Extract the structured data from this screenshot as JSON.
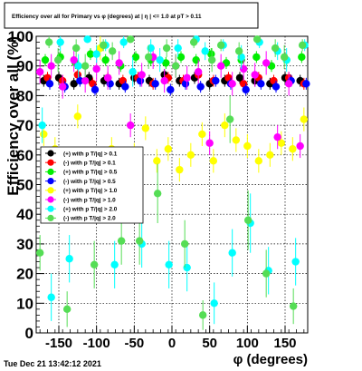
{
  "chart_data": {
    "type": "scatter",
    "title": "Efficiency over all for Primary vs φ (degrees) at | η | <= 1.0 at pT > 0.11",
    "xlabel": "φ (degrees)",
    "ylabel": "Efficiency over all (%)",
    "xlim": [
      -180,
      180
    ],
    "ylim": [
      0,
      100
    ],
    "xticks": [
      -150,
      -100,
      -50,
      0,
      50,
      100,
      150
    ],
    "yticks": [
      0,
      10,
      20,
      30,
      40,
      50,
      60,
      70,
      80,
      90,
      100
    ],
    "grid": true,
    "legend_position": "left-middle",
    "series": [
      {
        "name": "(+) with p T/|q| > 0.1",
        "color": "#000000",
        "x": [
          -170,
          -150,
          -130,
          -110,
          -90,
          -70,
          -50,
          -30,
          -10,
          10,
          30,
          50,
          70,
          90,
          110,
          130,
          150,
          170
        ],
        "y": [
          85,
          86,
          84,
          86,
          85,
          84,
          86,
          85,
          87,
          85,
          86,
          84,
          85,
          86,
          85,
          84,
          86,
          85
        ],
        "err": [
          2,
          2,
          2,
          2,
          2,
          2,
          2,
          2,
          2,
          2,
          2,
          2,
          2,
          2,
          2,
          2,
          2,
          2
        ]
      },
      {
        "name": "(-) with p T/|q| > 0.1",
        "color": "#ff0000",
        "x": [
          -165,
          -145,
          -125,
          -105,
          -85,
          -65,
          -45,
          -25,
          -5,
          15,
          35,
          55,
          75,
          95,
          115,
          135,
          155,
          175
        ],
        "y": [
          86,
          85,
          87,
          84,
          86,
          85,
          86,
          84,
          86,
          85,
          87,
          85,
          86,
          84,
          86,
          85,
          86,
          84
        ],
        "err": [
          2,
          2,
          2,
          2,
          2,
          2,
          2,
          2,
          2,
          2,
          2,
          2,
          2,
          2,
          2,
          2,
          2,
          2
        ]
      },
      {
        "name": "(+) with p T/|q| > 0.5",
        "color": "#00ee00",
        "x": [
          -168,
          -148,
          -128,
          -108,
          -88,
          -68,
          -48,
          -28,
          -8,
          12,
          32,
          52,
          72,
          92,
          112,
          132,
          152,
          172
        ],
        "y": [
          92,
          93,
          91,
          94,
          92,
          90,
          93,
          92,
          91,
          93,
          92,
          94,
          91,
          92,
          93,
          90,
          92,
          93
        ],
        "err": [
          2,
          2,
          2,
          2,
          2,
          2,
          2,
          2,
          2,
          2,
          2,
          2,
          2,
          2,
          2,
          2,
          2,
          2
        ]
      },
      {
        "name": "(-) with p T/|q| > 0.5",
        "color": "#0000ff",
        "x": [
          -162,
          -142,
          -122,
          -102,
          -82,
          -62,
          -42,
          -22,
          -2,
          18,
          38,
          58,
          78,
          98,
          118,
          138,
          158,
          178
        ],
        "y": [
          84,
          83,
          85,
          82,
          84,
          83,
          85,
          84,
          82,
          84,
          83,
          85,
          84,
          82,
          84,
          83,
          85,
          84
        ],
        "err": [
          2,
          2,
          2,
          2,
          2,
          2,
          2,
          2,
          2,
          2,
          2,
          2,
          2,
          2,
          2,
          2,
          2,
          2
        ]
      },
      {
        "name": "(+) with p T/|q| > 1.0",
        "color": "#ffff00",
        "x": [
          -170,
          -155,
          -140,
          -125,
          -110,
          -95,
          -80,
          -65,
          -50,
          -35,
          -20,
          -5,
          10,
          25,
          40,
          55,
          70,
          85,
          100,
          115,
          130,
          145,
          160,
          175
        ],
        "y": [
          67,
          62,
          50,
          73,
          55,
          96,
          62,
          57,
          60,
          69,
          58,
          62,
          55,
          60,
          67,
          58,
          70,
          65,
          63,
          58,
          60,
          64,
          62,
          72
        ],
        "err": [
          4,
          4,
          4,
          4,
          4,
          4,
          4,
          4,
          4,
          4,
          4,
          4,
          4,
          4,
          4,
          4,
          4,
          4,
          4,
          4,
          4,
          4,
          4,
          4
        ]
      },
      {
        "name": "(-) with p T/|q| > 1.0",
        "color": "#ff00ff",
        "x": [
          -175,
          -160,
          -145,
          -130,
          -115,
          -100,
          -85,
          -70,
          -55,
          -40,
          -25,
          -10,
          5,
          20,
          35,
          50,
          65,
          80,
          95,
          110,
          125,
          140,
          155,
          170
        ],
        "y": [
          88,
          90,
          83,
          92,
          85,
          89,
          86,
          91,
          70,
          87,
          93,
          85,
          90,
          86,
          88,
          64,
          90,
          84,
          89,
          87,
          91,
          66,
          84,
          63
        ],
        "err": [
          4,
          4,
          4,
          4,
          4,
          4,
          4,
          4,
          4,
          4,
          4,
          4,
          4,
          4,
          4,
          4,
          4,
          4,
          4,
          4,
          4,
          4,
          4,
          4
        ]
      },
      {
        "name": "(+) with p T/|q| > 2.0",
        "color": "#00ffff",
        "x": [
          -172,
          -160,
          -148,
          -136,
          -124,
          -112,
          -100,
          -88,
          -76,
          -64,
          -52,
          -40,
          -28,
          -16,
          -4,
          8,
          20,
          32,
          44,
          56,
          68,
          80,
          92,
          104,
          116,
          128,
          140,
          152,
          164,
          176
        ],
        "y": [
          70,
          12,
          98,
          25,
          90,
          99,
          94,
          97,
          23,
          98,
          88,
          30,
          96,
          92,
          23,
          96,
          22,
          99,
          95,
          10,
          97,
          27,
          93,
          37,
          98,
          21,
          95,
          92,
          24,
          97
        ],
        "err": [
          6,
          8,
          3,
          8,
          4,
          1,
          3,
          2,
          8,
          2,
          5,
          8,
          3,
          4,
          8,
          3,
          8,
          1,
          3,
          7,
          2,
          8,
          4,
          10,
          2,
          8,
          3,
          4,
          8,
          2
        ]
      },
      {
        "name": "(-) with p T/|q| > 2.0",
        "color": "#55dd55",
        "x": [
          -175,
          -163,
          -151,
          -139,
          -127,
          -115,
          -103,
          -91,
          -79,
          -67,
          -55,
          -43,
          -31,
          -19,
          -7,
          5,
          17,
          29,
          41,
          53,
          65,
          77,
          89,
          101,
          113,
          125,
          137,
          149,
          161,
          173
        ],
        "y": [
          27,
          98,
          92,
          8,
          96,
          90,
          23,
          97,
          95,
          31,
          99,
          31,
          93,
          47,
          96,
          90,
          30,
          98,
          6,
          92,
          97,
          72,
          95,
          38,
          99,
          20,
          96,
          93,
          9,
          97
        ],
        "err": [
          6,
          2,
          4,
          6,
          3,
          4,
          8,
          2,
          3,
          8,
          1,
          8,
          4,
          10,
          3,
          4,
          8,
          2,
          5,
          4,
          2,
          8,
          3,
          10,
          1,
          8,
          3,
          4,
          6,
          2
        ]
      }
    ]
  },
  "footer": {
    "timestamp": "Tue Dec 21 13:42:12 2021"
  }
}
